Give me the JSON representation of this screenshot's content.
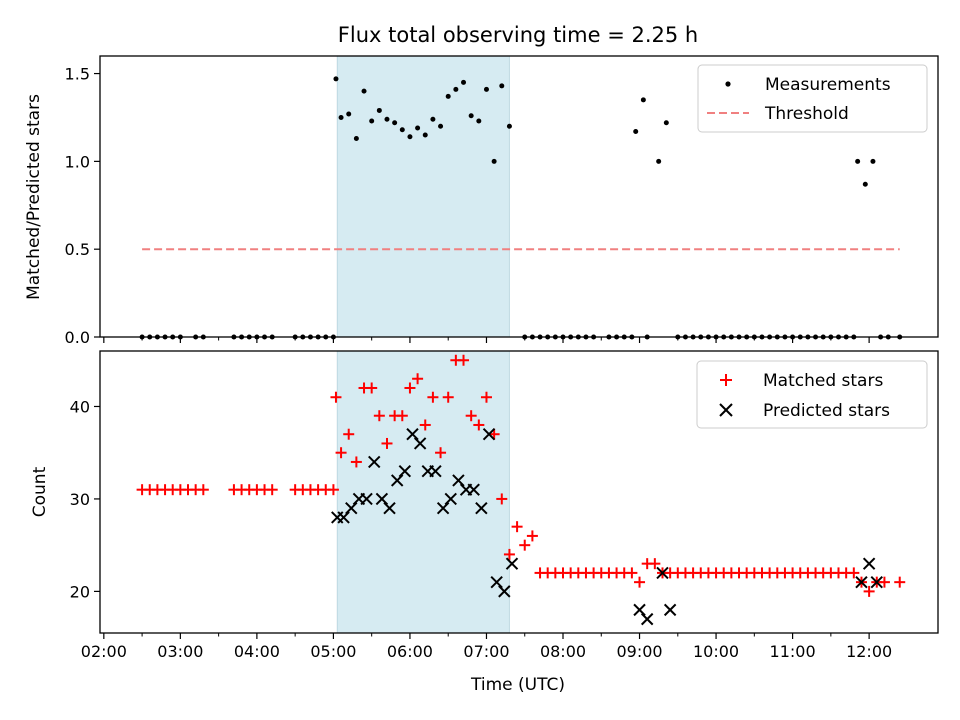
{
  "chart_data": [
    {
      "type": "scatter",
      "title": "Flux total observing time = 2.25 h",
      "xlabel": "",
      "ylabel": "Matched/Predicted stars",
      "ylim": [
        0,
        1.6
      ],
      "yticks": [
        "0.0",
        "0.5",
        "1.0",
        "1.5"
      ],
      "xlim_hours": [
        1.95,
        12.9
      ],
      "highlight_span": [
        "05:03",
        "07:18"
      ],
      "grid": false,
      "legend_position": "upper right",
      "series": [
        {
          "name": "Measurements",
          "marker": "dot",
          "color": "#000000",
          "x": [
            "02:30",
            "02:36",
            "02:42",
            "02:48",
            "02:54",
            "03:00",
            "03:12",
            "03:18",
            "03:42",
            "03:48",
            "03:54",
            "04:00",
            "04:06",
            "04:12",
            "04:30",
            "04:36",
            "04:42",
            "04:48",
            "04:54",
            "05:00",
            "05:02",
            "05:06",
            "05:12",
            "05:18",
            "05:24",
            "05:30",
            "05:36",
            "05:42",
            "05:48",
            "05:54",
            "06:00",
            "06:06",
            "06:12",
            "06:18",
            "06:24",
            "06:30",
            "06:36",
            "06:42",
            "06:48",
            "06:54",
            "07:00",
            "07:06",
            "07:12",
            "07:18",
            "07:30",
            "07:36",
            "07:42",
            "07:48",
            "07:54",
            "08:00",
            "08:06",
            "08:12",
            "08:18",
            "08:24",
            "08:36",
            "08:42",
            "08:48",
            "08:54",
            "08:57",
            "09:03",
            "09:15",
            "09:21",
            "09:06",
            "09:30",
            "09:36",
            "09:42",
            "09:48",
            "09:54",
            "10:00",
            "10:06",
            "10:12",
            "10:18",
            "10:24",
            "10:30",
            "10:36",
            "10:42",
            "10:48",
            "10:54",
            "11:00",
            "11:06",
            "11:12",
            "11:18",
            "11:24",
            "11:30",
            "11:36",
            "11:42",
            "11:48",
            "11:51",
            "11:57",
            "12:03",
            "12:09",
            "12:15",
            "12:24"
          ],
          "y": [
            0,
            0,
            0,
            0,
            0,
            0,
            0,
            0,
            0,
            0,
            0,
            0,
            0,
            0,
            0,
            0,
            0,
            0,
            0,
            0,
            1.47,
            1.25,
            1.27,
            1.13,
            1.4,
            1.23,
            1.29,
            1.24,
            1.22,
            1.18,
            1.14,
            1.19,
            1.15,
            1.24,
            1.2,
            1.37,
            1.41,
            1.45,
            1.26,
            1.23,
            1.41,
            1.0,
            1.43,
            1.2,
            0,
            0,
            0,
            0,
            0,
            0,
            0,
            0,
            0,
            0,
            0,
            0,
            0,
            0,
            1.17,
            1.35,
            1.0,
            1.22,
            0,
            0,
            0,
            0,
            0,
            0,
            0,
            0,
            0,
            0,
            0,
            0,
            0,
            0,
            0,
            0,
            0,
            0,
            0,
            0,
            0,
            0,
            0,
            0,
            0,
            1.0,
            0.87,
            1.0,
            0,
            0,
            0
          ]
        },
        {
          "name": "Threshold",
          "style": "dashed",
          "color": "#f08080",
          "x": [
            "02:30",
            "12:24"
          ],
          "y": [
            0.5,
            0.5
          ]
        }
      ]
    },
    {
      "type": "scatter",
      "title": "",
      "xlabel": "Time (UTC)",
      "ylabel": "Count",
      "ylim": [
        15.5,
        46
      ],
      "yticks": [
        "20",
        "30",
        "40"
      ],
      "xticks": [
        "02:00",
        "03:00",
        "04:00",
        "05:00",
        "06:00",
        "07:00",
        "08:00",
        "09:00",
        "10:00",
        "11:00",
        "12:00"
      ],
      "xlim_hours": [
        1.95,
        12.9
      ],
      "highlight_span": [
        "05:03",
        "07:18"
      ],
      "grid": false,
      "legend_position": "upper right",
      "series": [
        {
          "name": "Matched stars",
          "marker": "plus",
          "color": "#ff0000",
          "x": [
            "02:30",
            "02:36",
            "02:42",
            "02:48",
            "02:54",
            "03:00",
            "03:06",
            "03:12",
            "03:18",
            "03:42",
            "03:48",
            "03:54",
            "04:00",
            "04:06",
            "04:12",
            "04:30",
            "04:36",
            "04:42",
            "04:48",
            "04:54",
            "05:00",
            "05:02",
            "05:06",
            "05:12",
            "05:18",
            "05:24",
            "05:30",
            "05:36",
            "05:42",
            "05:48",
            "05:54",
            "06:00",
            "06:06",
            "06:12",
            "06:18",
            "06:24",
            "06:30",
            "06:36",
            "06:42",
            "06:48",
            "06:54",
            "07:00",
            "07:06",
            "07:12",
            "07:18",
            "07:24",
            "07:30",
            "07:36",
            "07:42",
            "07:48",
            "07:54",
            "08:00",
            "08:06",
            "08:12",
            "08:18",
            "08:24",
            "08:30",
            "08:36",
            "08:42",
            "08:48",
            "08:54",
            "09:00",
            "09:06",
            "09:12",
            "09:18",
            "09:24",
            "09:30",
            "09:36",
            "09:42",
            "09:48",
            "09:54",
            "10:00",
            "10:06",
            "10:12",
            "10:18",
            "10:24",
            "10:30",
            "10:36",
            "10:42",
            "10:48",
            "10:54",
            "11:00",
            "11:06",
            "11:12",
            "11:18",
            "11:24",
            "11:30",
            "11:36",
            "11:42",
            "11:48",
            "11:54",
            "12:00",
            "12:06",
            "12:12",
            "12:24"
          ],
          "y": [
            31,
            31,
            31,
            31,
            31,
            31,
            31,
            31,
            31,
            31,
            31,
            31,
            31,
            31,
            31,
            31,
            31,
            31,
            31,
            31,
            31,
            41,
            35,
            37,
            34,
            42,
            42,
            39,
            36,
            39,
            39,
            42,
            43,
            38,
            41,
            35,
            41,
            45,
            45,
            39,
            38,
            41,
            37,
            30,
            24,
            27,
            25,
            26,
            22,
            22,
            22,
            22,
            22,
            22,
            22,
            22,
            22,
            22,
            22,
            22,
            22,
            21,
            23,
            23,
            22,
            22,
            22,
            22,
            22,
            22,
            22,
            22,
            22,
            22,
            22,
            22,
            22,
            22,
            22,
            22,
            22,
            22,
            22,
            22,
            22,
            22,
            22,
            22,
            22,
            22,
            21,
            20,
            21,
            21,
            21
          ]
        },
        {
          "name": "Predicted stars",
          "marker": "x",
          "color": "#000000",
          "x": [
            "05:03",
            "05:08",
            "05:14",
            "05:20",
            "05:26",
            "05:32",
            "05:38",
            "05:44",
            "05:50",
            "05:56",
            "06:02",
            "06:08",
            "06:14",
            "06:20",
            "06:26",
            "06:32",
            "06:38",
            "06:44",
            "06:50",
            "06:56",
            "07:02",
            "07:08",
            "07:14",
            "07:20",
            "09:00",
            "09:06",
            "09:18",
            "09:24",
            "11:54",
            "12:00",
            "12:06"
          ],
          "y": [
            28,
            28,
            29,
            30,
            30,
            34,
            30,
            29,
            32,
            33,
            37,
            36,
            33,
            33,
            29,
            30,
            32,
            31,
            31,
            29,
            37,
            21,
            20,
            23,
            18,
            17,
            22,
            18,
            21,
            23,
            21
          ]
        }
      ]
    }
  ]
}
